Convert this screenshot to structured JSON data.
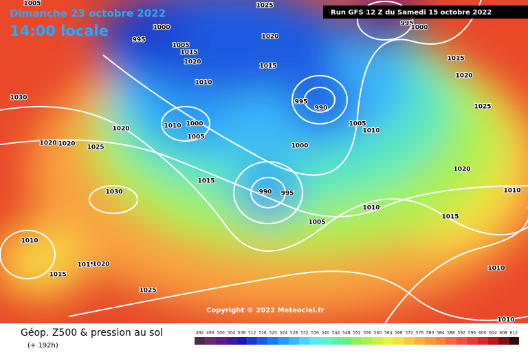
{
  "header": {
    "date": "Dimanche 23 octobre 2022",
    "time": "14:00 locale",
    "run": "Run GFS 12 Z du Samedi 15 octobre 2022"
  },
  "map": {
    "isobar_labels": [
      "1005",
      "1025",
      "1000",
      "995",
      "1020",
      "995",
      "1000",
      "1005",
      "1015",
      "1020",
      "1015",
      "1015",
      "1020",
      "1010",
      "1030",
      "995",
      "990",
      "1025",
      "1020",
      "1010",
      "1000",
      "1005",
      "1005",
      "1010",
      "1020",
      "1020",
      "1025",
      "1000",
      "1020",
      "1015",
      "990",
      "995",
      "1030",
      "1010",
      "1010",
      "1005",
      "1015",
      "1010",
      "1015",
      "1020",
      "1015",
      "1010",
      "1025",
      "1010"
    ],
    "copyright": "Copyright © 2022 Meteociel.fr"
  },
  "footer": {
    "title": "Géop. Z500 & pression au sol",
    "lead": "(+ 192h)",
    "scale": {
      "values": [
        492,
        496,
        500,
        504,
        508,
        512,
        516,
        520,
        524,
        528,
        532,
        536,
        540,
        544,
        548,
        552,
        556,
        560,
        564,
        568,
        572,
        576,
        580,
        584,
        588,
        592,
        596,
        600,
        604,
        608,
        612
      ],
      "colors": [
        "#4b2a4b",
        "#6a2a6a",
        "#5a1a8a",
        "#3a1a9a",
        "#1a1aaa",
        "#1a3acc",
        "#1a5ae0",
        "#1a7af0",
        "#2a9af8",
        "#3ab8fa",
        "#4ad4fa",
        "#5ae8f0",
        "#5af0d0",
        "#5af0a0",
        "#6af080",
        "#8af060",
        "#aaf050",
        "#ccf040",
        "#e8f040",
        "#f8e040",
        "#f8c840",
        "#f8b040",
        "#f89840",
        "#f88040",
        "#f86840",
        "#f05040",
        "#e83838",
        "#d82828",
        "#b81818",
        "#801010",
        "#300808"
      ]
    }
  }
}
